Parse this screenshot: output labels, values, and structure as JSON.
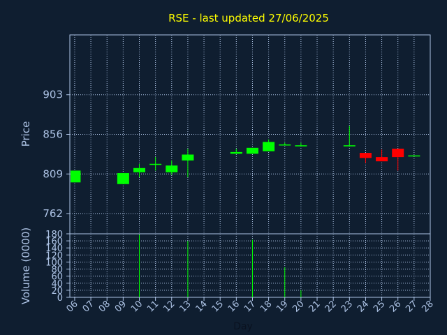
{
  "chart_data": {
    "type": "candlestick",
    "title": "RSE - last updated 27/06/2025",
    "price_panel": {
      "ylabel": "Price",
      "ylim": [
        738,
        974
      ],
      "yticks": [
        762,
        809,
        856,
        903
      ],
      "grid": true
    },
    "volume_panel": {
      "ylabel": "Volume (0000)",
      "ylim": [
        0,
        180
      ],
      "yticks": [
        0,
        20,
        40,
        60,
        80,
        100,
        120,
        140,
        160,
        180
      ],
      "grid": true
    },
    "xlabel": "Day",
    "x_ticks": [
      "06",
      "07",
      "08",
      "09",
      "10",
      "11",
      "12",
      "13",
      "14",
      "15",
      "16",
      "17",
      "18",
      "19",
      "20",
      "21",
      "22",
      "23",
      "24",
      "25",
      "26",
      "27",
      "28"
    ],
    "x_range": [
      6,
      28
    ],
    "colors": {
      "up": "#00ff00",
      "down": "#ff0000",
      "volume": "#00ff00",
      "grid": "#aec4e6"
    },
    "candles": [
      {
        "day": 6,
        "open": 799,
        "close": 813,
        "high": 813,
        "low": 799
      },
      {
        "day": 9,
        "open": 797,
        "close": 810,
        "high": 810,
        "low": 797
      },
      {
        "day": 10,
        "open": 811,
        "close": 816,
        "high": 821,
        "low": 805
      },
      {
        "day": 11,
        "open": 820,
        "close": 821,
        "high": 829,
        "low": 813
      },
      {
        "day": 12,
        "open": 811,
        "close": 819,
        "high": 825,
        "low": 808
      },
      {
        "day": 13,
        "open": 825,
        "close": 832,
        "high": 839,
        "low": 805
      },
      {
        "day": 16,
        "open": 833,
        "close": 835,
        "high": 839,
        "low": 833
      },
      {
        "day": 17,
        "open": 833,
        "close": 840,
        "high": 840,
        "low": 833
      },
      {
        "day": 18,
        "open": 836,
        "close": 847,
        "high": 850,
        "low": 836
      },
      {
        "day": 19,
        "open": 843,
        "close": 844,
        "high": 846,
        "low": 843
      },
      {
        "day": 20,
        "open": 842,
        "close": 843,
        "high": 846,
        "low": 842
      },
      {
        "day": 23,
        "open": 842,
        "close": 843,
        "high": 866,
        "low": 842
      },
      {
        "day": 24,
        "open": 834,
        "close": 828,
        "high": 834,
        "low": 822
      },
      {
        "day": 25,
        "open": 829,
        "close": 824,
        "high": 838,
        "low": 824
      },
      {
        "day": 26,
        "open": 839,
        "close": 829,
        "high": 839,
        "low": 813
      },
      {
        "day": 27,
        "open": 830,
        "close": 831,
        "high": 831,
        "low": 830
      }
    ],
    "volume": [
      {
        "day": 10,
        "value": 178
      },
      {
        "day": 13,
        "value": 160
      },
      {
        "day": 17,
        "value": 163
      },
      {
        "day": 19,
        "value": 85
      },
      {
        "day": 20,
        "value": 20
      }
    ]
  }
}
